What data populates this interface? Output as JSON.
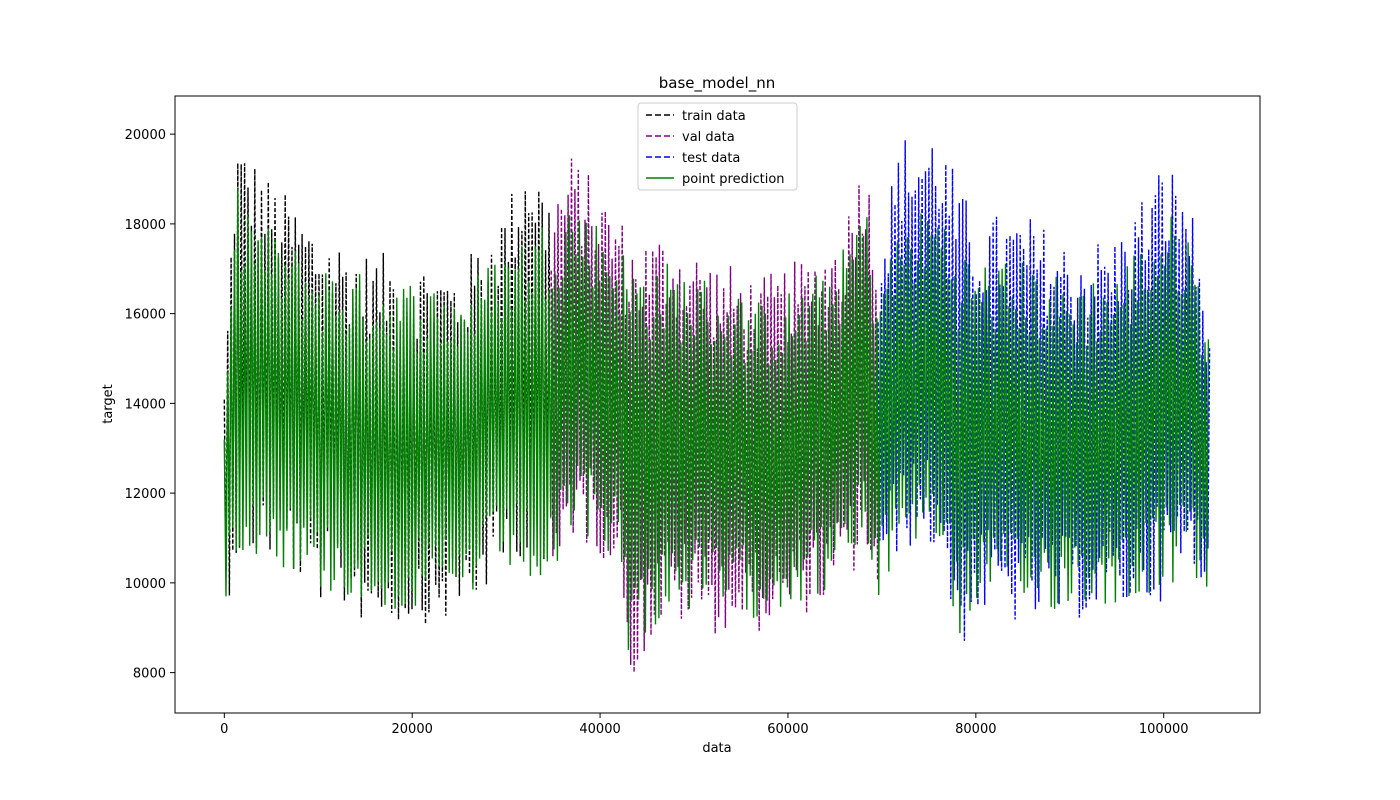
{
  "chart_data": {
    "type": "line",
    "title": "base_model_nn",
    "xlabel": "data",
    "ylabel": "target",
    "xlim": [
      -5250,
      110250
    ],
    "ylim": [
      7100,
      20850
    ],
    "xticks": [
      0,
      20000,
      40000,
      60000,
      80000,
      100000
    ],
    "yticks": [
      8000,
      10000,
      12000,
      14000,
      16000,
      18000,
      20000
    ],
    "grid": false,
    "legend_position": "upper center",
    "series": [
      {
        "name": "train data",
        "color": "#000000",
        "linestyle": "dashed",
        "x": [
          0,
          1200,
          5000,
          10000,
          15000,
          20000,
          25000,
          30000,
          32500,
          34800
        ],
        "upper": [
          14500,
          20050,
          19000,
          18000,
          17400,
          17300,
          17000,
          18500,
          19800,
          18600
        ],
        "lower": [
          9150,
          10400,
          10500,
          9600,
          9100,
          9050,
          9150,
          10200,
          10800,
          9400
        ]
      },
      {
        "name": "val data",
        "color": "#800080",
        "linestyle": "dashed",
        "x": [
          34800,
          37000,
          42000,
          43200,
          47000,
          52000,
          57000,
          62000,
          66000,
          68000,
          69600
        ],
        "upper": [
          18800,
          19600,
          18300,
          17800,
          17900,
          17300,
          16800,
          17300,
          18000,
          19950,
          17600
        ],
        "lower": [
          9400,
          11000,
          10300,
          7750,
          9100,
          8850,
          8900,
          9300,
          9700,
          10500,
          9600
        ]
      },
      {
        "name": "test data",
        "color": "#0000ff",
        "linestyle": "dashed",
        "x": [
          69600,
          72000,
          76000,
          78200,
          80000,
          85000,
          90000,
          95000,
          100000,
          102500,
          104900
        ],
        "upper": [
          17600,
          20000,
          20250,
          18900,
          18200,
          18300,
          17600,
          17800,
          19500,
          19000,
          15900
        ],
        "lower": [
          9500,
          10800,
          10600,
          8350,
          9200,
          9000,
          9150,
          9300,
          9600,
          10000,
          9750
        ]
      },
      {
        "name": "point prediction",
        "color": "#008000",
        "linestyle": "solid",
        "x": [
          0,
          1200,
          5000,
          10000,
          15000,
          20000,
          25000,
          30000,
          34800,
          37000,
          42000,
          43200,
          47000,
          52000,
          57000,
          62000,
          66000,
          68000,
          69600,
          72000,
          76000,
          78200,
          80000,
          85000,
          90000,
          95000,
          100000,
          102500,
          104900
        ],
        "upper": [
          13200,
          18900,
          17900,
          17200,
          16900,
          16800,
          16600,
          17500,
          18300,
          18700,
          17600,
          17300,
          17200,
          16800,
          16300,
          16700,
          17500,
          18800,
          16800,
          18000,
          18600,
          17600,
          17300,
          17200,
          16800,
          17000,
          18300,
          18100,
          15700
        ],
        "lower": [
          9400,
          10700,
          10500,
          9800,
          9500,
          9300,
          9400,
          10300,
          9500,
          11100,
          10500,
          8100,
          9300,
          9300,
          9200,
          9600,
          9900,
          10700,
          9400,
          10900,
          10800,
          8700,
          9500,
          9300,
          9400,
          9500,
          9800,
          10100,
          9800
        ]
      }
    ]
  }
}
